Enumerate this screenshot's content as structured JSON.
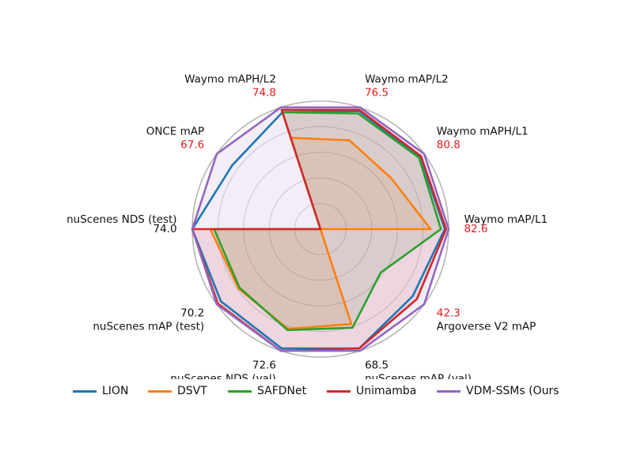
{
  "chart_data": {
    "type": "radar",
    "axes": [
      {
        "label": "Waymo mAP/L1",
        "max": 82.6,
        "max_label": "82.6",
        "max_label_color": "#e31a1c"
      },
      {
        "label": "Waymo mAPH/L1",
        "max": 80.8,
        "max_label": "80.8",
        "max_label_color": "#e31a1c"
      },
      {
        "label": "Waymo mAP/L2",
        "max": 76.5,
        "max_label": "76.5",
        "max_label_color": "#e31a1c"
      },
      {
        "label": "Waymo mAPH/L2",
        "max": 74.8,
        "max_label": "74.8",
        "max_label_color": "#e31a1c"
      },
      {
        "label": "ONCE mAP",
        "max": 67.6,
        "max_label": "67.6",
        "max_label_color": "#e31a1c"
      },
      {
        "label": "nuScenes NDS (test)",
        "max": 74.0,
        "max_label": "74.0",
        "max_label_color": "#111111"
      },
      {
        "label": "nuScenes mAP (test)",
        "max": 70.2,
        "max_label": "70.2",
        "max_label_color": "#111111"
      },
      {
        "label": "nuScenes NDS (val)",
        "max": 72.6,
        "max_label": "72.6",
        "max_label_color": "#111111"
      },
      {
        "label": "nuScenes mAP (val)",
        "max": 68.5,
        "max_label": "68.5",
        "max_label_color": "#111111"
      },
      {
        "label": "Argoverse V2 mAP",
        "max": 42.3,
        "max_label": "42.3",
        "max_label_color": "#e31a1c"
      }
    ],
    "series": [
      {
        "name": "LION",
        "color": "#1f77b4",
        "fill": false,
        "values": [
          0.97,
          0.96,
          0.97,
          0.96,
          0.85,
          1.0,
          0.96,
          0.98,
          0.98,
          0.89
        ]
      },
      {
        "name": "DSVT",
        "color": "#ff7f0e",
        "fill": true,
        "values": [
          0.86,
          0.68,
          0.73,
          0.75,
          0.0,
          0.86,
          0.79,
          0.82,
          0.78,
          0.0
        ]
      },
      {
        "name": "SAFDNet",
        "color": "#2ca02c",
        "fill": true,
        "values": [
          0.94,
          0.95,
          0.95,
          0.96,
          0.0,
          0.83,
          0.78,
          0.83,
          0.81,
          0.58
        ]
      },
      {
        "name": "Unimamba",
        "color": "#d62728",
        "fill": true,
        "values": [
          0.98,
          0.97,
          0.98,
          0.98,
          0.0,
          1.0,
          0.99,
          1.0,
          0.98,
          0.93
        ]
      },
      {
        "name": "VDM-SSMs (Ours",
        "color": "#9467bd",
        "fill": true,
        "values": [
          1.0,
          1.0,
          1.0,
          1.0,
          1.0,
          1.0,
          1.0,
          1.0,
          1.0,
          1.0
        ]
      }
    ],
    "r_grid": [
      0.2,
      0.4,
      0.6,
      0.8,
      1.0
    ],
    "grid": true,
    "legend_position": "bottom",
    "title": "",
    "xlabel": "",
    "ylabel": ""
  }
}
